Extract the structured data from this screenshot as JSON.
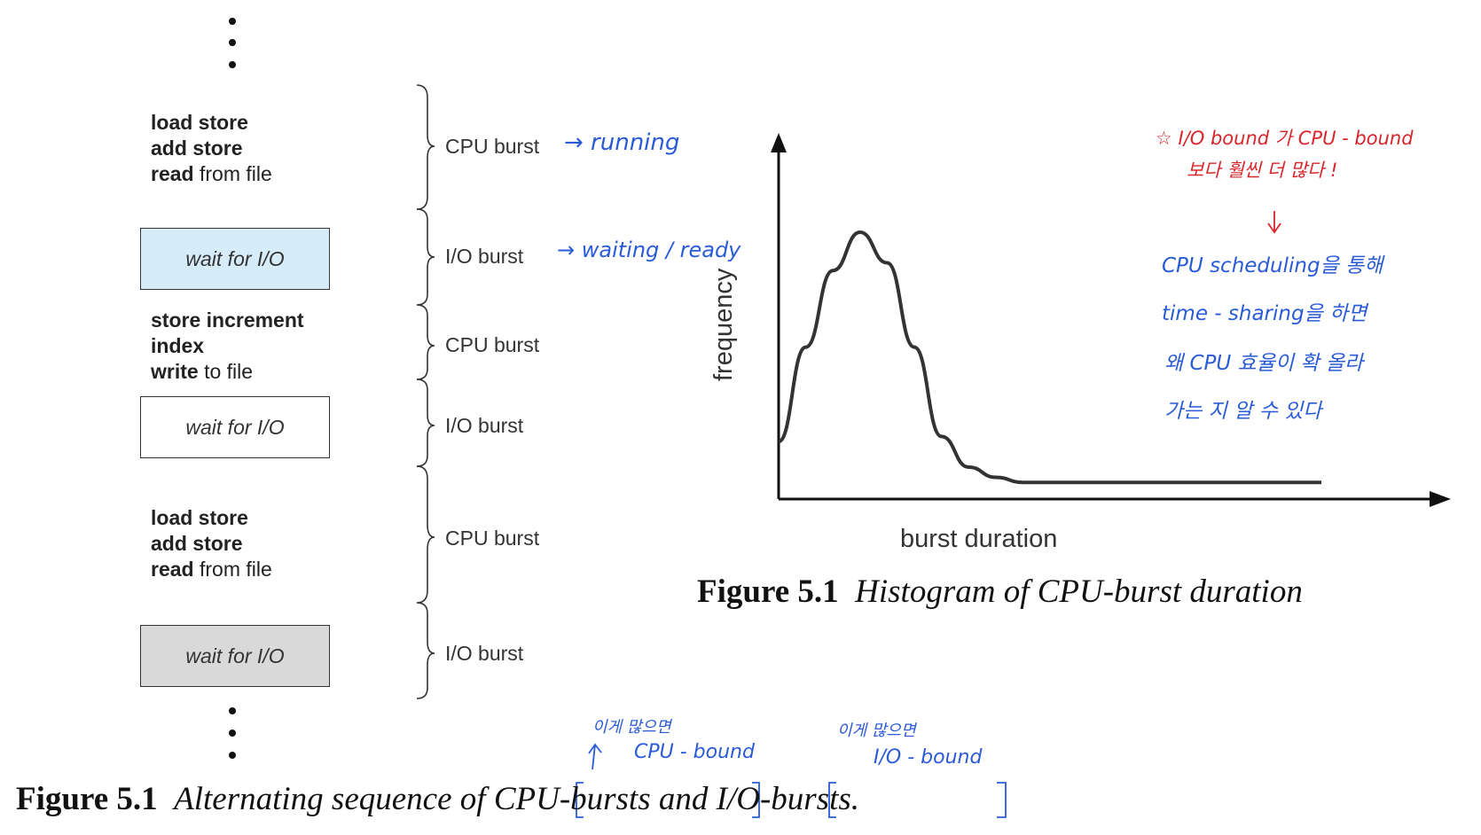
{
  "sequence": {
    "blocks": [
      {
        "type": "code",
        "lines": [
          {
            "bold": "load store",
            "rest": ""
          },
          {
            "bold": "add store",
            "rest": ""
          },
          {
            "bold": "read",
            "rest": " from file"
          }
        ]
      },
      {
        "type": "io",
        "label": "wait for I/O",
        "fill": "#d6ecf8"
      },
      {
        "type": "code",
        "lines": [
          {
            "bold": "store increment",
            "rest": ""
          },
          {
            "bold": "index",
            "rest": ""
          },
          {
            "bold": "write",
            "rest": " to file"
          }
        ]
      },
      {
        "type": "io",
        "label": "wait for I/O",
        "fill": "#ffffff"
      },
      {
        "type": "code",
        "lines": [
          {
            "bold": "load store",
            "rest": ""
          },
          {
            "bold": "add store",
            "rest": ""
          },
          {
            "bold": "read",
            "rest": " from file"
          }
        ]
      },
      {
        "type": "io",
        "label": "wait for I/O",
        "fill": "#d9d9d9"
      }
    ],
    "bursts": [
      "CPU burst",
      "I/O burst",
      "CPU burst",
      "I/O burst",
      "CPU burst",
      "I/O burst"
    ]
  },
  "annotations": {
    "running": "→ running",
    "waiting": "→ waiting / ready",
    "cpu_many_small": "이게 많으면",
    "cpu_bound": "CPU - bound",
    "io_many_small": "이게 많으면",
    "io_bound": "I/O - bound",
    "red_line1": "☆ I/O bound 가  CPU - bound",
    "red_line2": "보다 훨씬 더 많다 !",
    "blue_arrow": "↓",
    "blue_line1": "CPU scheduling을  통해",
    "blue_line2": "time - sharing을  하면",
    "blue_line3": "왜  CPU  효율이  확  올라",
    "blue_line4": "가는 지  알  수  있다"
  },
  "chart_data": {
    "type": "line",
    "title": "",
    "xlabel": "burst duration",
    "ylabel": "frequency",
    "ticks": "none",
    "grid": false,
    "series": [
      {
        "description": "unimodal curve peaking at short burst durations, decaying to a long flat tail",
        "x": [
          0,
          0.05,
          0.1,
          0.15,
          0.2,
          0.25,
          0.3,
          0.35,
          0.4,
          0.45,
          0.5,
          0.6,
          0.7,
          0.8,
          0.9,
          1.0
        ],
        "values": [
          0.18,
          0.55,
          0.85,
          1.0,
          0.88,
          0.55,
          0.2,
          0.08,
          0.04,
          0.02,
          0.02,
          0.02,
          0.02,
          0.02,
          0.02,
          0.02
        ]
      }
    ],
    "colors": {
      "curve": "#333333",
      "axes": "#111111"
    }
  },
  "captions": {
    "left_fig": "Figure 5.1",
    "left_txt_a": "Alternating sequence of ",
    "left_txt_b": "CPU-bursts",
    "left_txt_c": " and ",
    "left_txt_d": "I/O-bursts.",
    "right_fig": "Figure 5.1",
    "right_txt": "Histogram of CPU-burst duration"
  }
}
